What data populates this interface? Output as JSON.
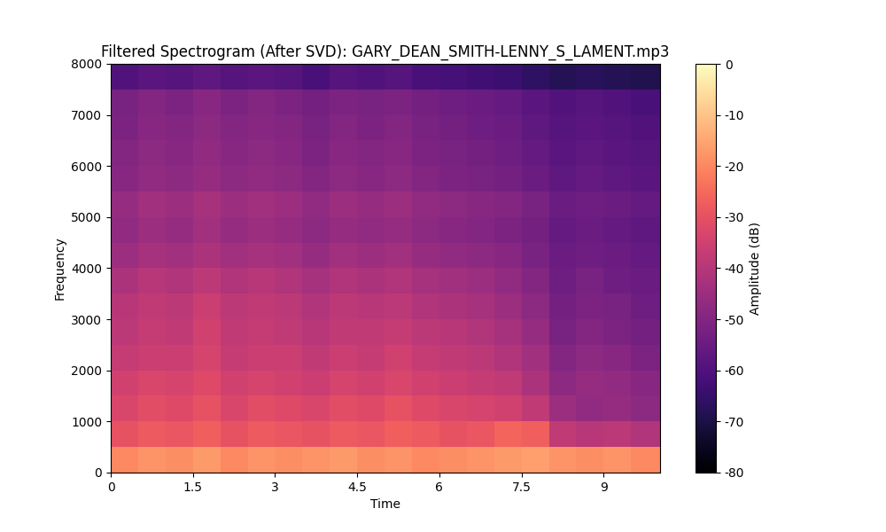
{
  "chart_data": {
    "type": "heatmap",
    "title": "Filtered Spectrogram (After SVD): GARY_DEAN_SMITH-LENNY_S_LAMENT.mp3",
    "x_label": "Time",
    "y_label": "Frequency",
    "color": "magma",
    "x_edges": [
      0,
      0.5,
      1,
      1.5,
      2,
      2.5,
      3,
      3.5,
      4,
      4.5,
      5,
      5.5,
      6,
      6.5,
      7,
      7.5,
      8,
      8.5,
      9,
      9.5,
      10.03
    ],
    "y_edges": [
      0,
      500,
      1000,
      1500,
      2000,
      2500,
      3000,
      3500,
      4000,
      4500,
      5000,
      5500,
      6000,
      6500,
      7000,
      7500,
      8000
    ],
    "cells": [
      [
        -20,
        -18,
        -19,
        -17,
        -20,
        -18,
        -19,
        -18,
        -17,
        -19,
        -18,
        -20,
        -19,
        -18,
        -17,
        -16,
        -18,
        -19,
        -18,
        -20
      ],
      [
        -30,
        -28,
        -29,
        -27,
        -30,
        -28,
        -29,
        -30,
        -28,
        -29,
        -27,
        -28,
        -30,
        -29,
        -26,
        -27,
        -38,
        -40,
        -39,
        -41
      ],
      [
        -33,
        -31,
        -32,
        -30,
        -33,
        -31,
        -32,
        -33,
        -31,
        -32,
        -30,
        -32,
        -33,
        -34,
        -35,
        -38,
        -45,
        -47,
        -46,
        -48
      ],
      [
        -35,
        -33,
        -34,
        -32,
        -35,
        -34,
        -35,
        -36,
        -34,
        -35,
        -33,
        -35,
        -36,
        -37,
        -38,
        -42,
        -48,
        -46,
        -47,
        -49
      ],
      [
        -37,
        -36,
        -36,
        -34,
        -37,
        -36,
        -36,
        -38,
        -36,
        -37,
        -35,
        -37,
        -38,
        -39,
        -41,
        -44,
        -50,
        -48,
        -49,
        -51
      ],
      [
        -39,
        -37,
        -38,
        -35,
        -38,
        -37,
        -38,
        -40,
        -38,
        -38,
        -37,
        -39,
        -40,
        -41,
        -43,
        -46,
        -52,
        -50,
        -51,
        -53
      ],
      [
        -40,
        -38,
        -39,
        -36,
        -39,
        -38,
        -39,
        -41,
        -39,
        -40,
        -39,
        -41,
        -42,
        -43,
        -45,
        -48,
        -53,
        -51,
        -52,
        -54
      ],
      [
        -42,
        -40,
        -41,
        -39,
        -41,
        -40,
        -41,
        -43,
        -41,
        -42,
        -41,
        -43,
        -44,
        -45,
        -47,
        -50,
        -54,
        -52,
        -54,
        -55
      ],
      [
        -45,
        -43,
        -44,
        -42,
        -44,
        -43,
        -44,
        -46,
        -44,
        -45,
        -44,
        -46,
        -47,
        -48,
        -49,
        -52,
        -55,
        -54,
        -55,
        -56
      ],
      [
        -47,
        -45,
        -46,
        -44,
        -46,
        -45,
        -46,
        -48,
        -46,
        -47,
        -46,
        -48,
        -49,
        -50,
        -51,
        -53,
        -56,
        -55,
        -56,
        -57
      ],
      [
        -46,
        -44,
        -45,
        -43,
        -45,
        -44,
        -45,
        -47,
        -45,
        -46,
        -45,
        -47,
        -48,
        -49,
        -50,
        -52,
        -55,
        -54,
        -55,
        -56
      ],
      [
        -49,
        -47,
        -48,
        -46,
        -48,
        -47,
        -48,
        -50,
        -48,
        -49,
        -48,
        -50,
        -51,
        -52,
        -53,
        -55,
        -57,
        -56,
        -57,
        -58
      ],
      [
        -50,
        -48,
        -49,
        -47,
        -49,
        -48,
        -49,
        -51,
        -49,
        -50,
        -49,
        -51,
        -52,
        -53,
        -54,
        -56,
        -58,
        -57,
        -58,
        -59
      ],
      [
        -51,
        -49,
        -50,
        -48,
        -50,
        -49,
        -50,
        -52,
        -50,
        -51,
        -50,
        -52,
        -53,
        -54,
        -55,
        -57,
        -59,
        -58,
        -59,
        -60
      ],
      [
        -52,
        -50,
        -51,
        -49,
        -51,
        -50,
        -51,
        -53,
        -51,
        -52,
        -51,
        -53,
        -54,
        -55,
        -56,
        -58,
        -60,
        -59,
        -60,
        -61
      ],
      [
        -60,
        -58,
        -59,
        -57,
        -59,
        -58,
        -59,
        -61,
        -59,
        -60,
        -59,
        -61,
        -62,
        -63,
        -64,
        -66,
        -68,
        -67,
        -68,
        -69
      ]
    ],
    "xlim": [
      0,
      10.03
    ],
    "xticks": [
      0,
      1.5,
      3,
      4.5,
      6,
      7.5,
      9
    ],
    "ylim": [
      0,
      8000
    ],
    "yticks": [
      0,
      1000,
      2000,
      3000,
      4000,
      5000,
      6000,
      7000,
      8000
    ],
    "colorbar": {
      "label": "Amplitude (dB)",
      "range": [
        -80,
        0
      ],
      "ticks": [
        -80,
        -70,
        -60,
        -50,
        -40,
        -30,
        -20,
        -10,
        0
      ]
    }
  }
}
